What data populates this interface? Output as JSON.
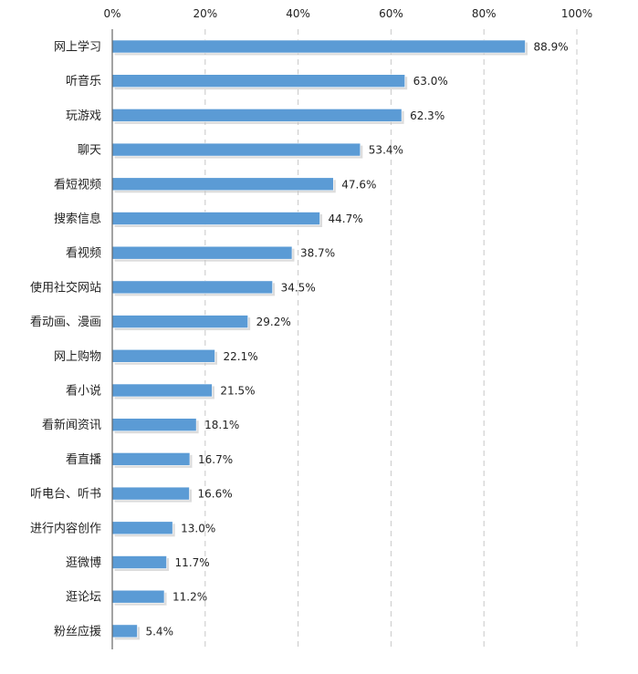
{
  "chart_data": {
    "type": "bar",
    "orientation": "horizontal",
    "categories": [
      "网上学习",
      "听音乐",
      "玩游戏",
      "聊天",
      "看短视频",
      "搜索信息",
      "看视频",
      "使用社交网站",
      "看动画、漫画",
      "网上购物",
      "看小说",
      "看新闻资讯",
      "看直播",
      "听电台、听书",
      "进行内容创作",
      "逛微博",
      "逛论坛",
      "粉丝应援"
    ],
    "values": [
      88.9,
      63.0,
      62.3,
      53.4,
      47.6,
      44.7,
      38.7,
      34.5,
      29.2,
      22.1,
      21.5,
      18.1,
      16.7,
      16.6,
      13.0,
      11.7,
      11.2,
      5.4
    ],
    "value_labels": [
      "88.9%",
      "63.0%",
      "62.3%",
      "53.4%",
      "47.6%",
      "44.7%",
      "38.7%",
      "34.5%",
      "29.2%",
      "22.1%",
      "21.5%",
      "18.1%",
      "16.7%",
      "16.6%",
      "13.0%",
      "11.7%",
      "11.2%",
      "5.4%"
    ],
    "x_ticks": [
      0,
      20,
      40,
      60,
      80,
      100
    ],
    "x_tick_labels": [
      "0%",
      "20%",
      "40%",
      "60%",
      "80%",
      "100%"
    ],
    "xlim": [
      0,
      100
    ],
    "x_axis_position": "top",
    "grid": true,
    "bar_color": "#5b9bd5",
    "title": "",
    "xlabel": "",
    "ylabel": ""
  }
}
